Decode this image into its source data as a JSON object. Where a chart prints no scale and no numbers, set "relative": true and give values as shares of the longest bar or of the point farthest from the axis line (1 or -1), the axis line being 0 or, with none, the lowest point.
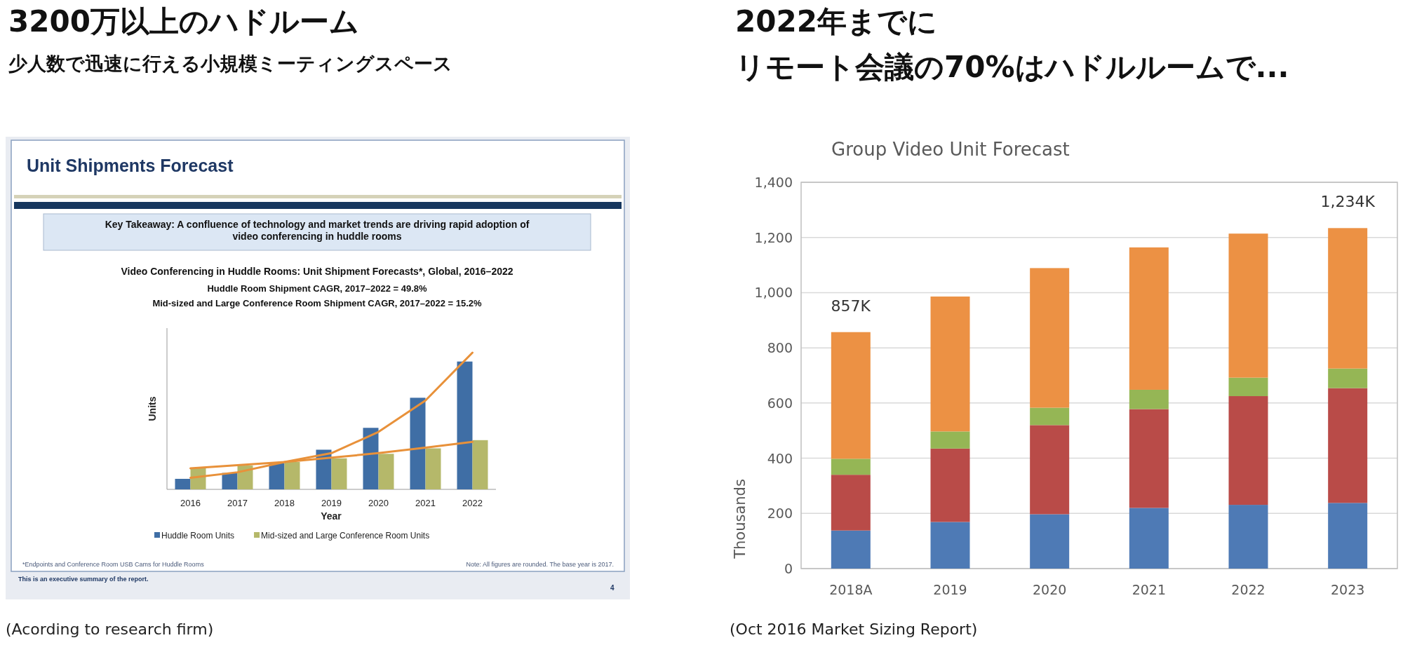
{
  "chart_data": [
    {
      "type": "bar",
      "title": "3200万以上のハドルーム",
      "subtitle": "少人数で迅速に行える小規模ミーティングスペース",
      "xlabel": "Year",
      "ylabel": "Units",
      "relative": true,
      "legend": "bottom",
      "categories": [
        "2016",
        "2017",
        "2018",
        "2019",
        "2020",
        "2021",
        "2022"
      ],
      "series": [
        {
          "name": "Huddle Room Units",
          "color": "#3f6ea5",
          "values": [
            0.077,
            0.12,
            0.19,
            0.29,
            0.45,
            0.67,
            0.935
          ]
        },
        {
          "name": "Mid-sized and Large Conference Room Units",
          "color": "#b5b86a",
          "values": [
            0.154,
            0.174,
            0.2,
            0.227,
            0.26,
            0.3,
            0.36
          ]
        },
        {
          "type": "line",
          "color": "#e8913a",
          "values": [
            0.085,
            0.125,
            0.2,
            0.265,
            0.42,
            0.65,
            1.0
          ]
        },
        {
          "type": "line",
          "color": "#e8913a",
          "values": [
            0.154,
            0.177,
            0.2,
            0.232,
            0.265,
            0.305,
            0.347
          ]
        }
      ],
      "annotations": [
        "Unit Shipments Forecast",
        "Key Takeaway: A confluence of technology and market trends are driving rapid adoption of\nvideo conferencing in huddle rooms",
        "Video Conferencing in Huddle Rooms: Unit Shipment Forecasts*, Global, 2016–2022",
        "Huddle Room Shipment CAGR, 2017–2022 = 49.8%",
        "Mid-sized and Large Conference Room Shipment CAGR, 2017–2022 = 15.2%",
        "*Endpoints and Conference Room USB Cams for Huddle Rooms",
        "Note: All figures are rounded. The base year is 2017.",
        "This is an executive summary of the report.",
        "4",
        "(Acording to research firm)"
      ]
    },
    {
      "type": "bar",
      "stacked": true,
      "title": "2022年までに",
      "subtitle": "リモート会議の70%はハドルルームで...",
      "ylabel": "Thousands",
      "grid": "y",
      "categories": [
        "2018A",
        "2019",
        "2020",
        "2021",
        "2022",
        "2023"
      ],
      "ylim": [
        0,
        1400
      ],
      "yticks": [
        0,
        200,
        400,
        600,
        800,
        {
          "value": 1000,
          "label": "1,000"
        },
        {
          "value": 1200,
          "label": "1,200"
        },
        {
          "value": 1400,
          "label": "1,400"
        }
      ],
      "series": [
        {
          "color": "#4e7ab5",
          "values": [
            138,
            169,
            197,
            220,
            231,
            238
          ]
        },
        {
          "color": "#b94b48",
          "values": [
            202,
            266,
            323,
            358,
            394,
            416
          ]
        },
        {
          "color": "#95b655",
          "values": [
            58,
            62,
            63,
            70,
            67,
            71
          ]
        },
        {
          "color": "#ec9144",
          "values": [
            459,
            489,
            506,
            516,
            522,
            509
          ]
        }
      ],
      "annotations": [
        "Group Video Unit Forecast",
        {
          "text": "857K",
          "x": "2018A",
          "y": 857
        },
        {
          "text": "1,234K",
          "x": "2023",
          "y": 1234
        },
        "(Oct 2016 Market Sizing Report)"
      ]
    }
  ]
}
